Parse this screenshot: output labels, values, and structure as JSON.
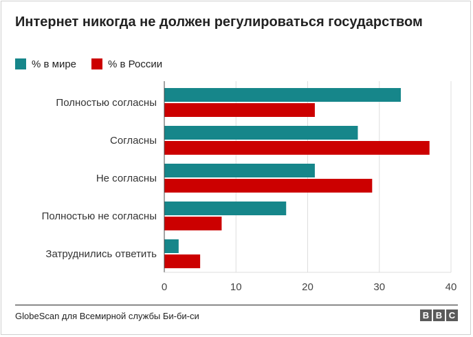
{
  "title": "Интернет никогда не должен регулироваться государством",
  "source": "GlobeScan для Всемирной службы Би-би-си",
  "logo": [
    "B",
    "B",
    "C"
  ],
  "colors": {
    "world": "#16868a",
    "russia": "#cc0000",
    "grid": "#dddddd",
    "axis": "#444444"
  },
  "chart_data": {
    "type": "bar",
    "orientation": "horizontal",
    "categories": [
      "Полностью согласны",
      "Согласны",
      "Не согласны",
      "Полностью не согласны",
      "Затруднились ответить"
    ],
    "series": [
      {
        "name": "% в мире",
        "values": [
          33,
          27,
          21,
          17,
          2
        ]
      },
      {
        "name": "% в России",
        "values": [
          21,
          37,
          29,
          8,
          5
        ]
      }
    ],
    "xlim": [
      0,
      40
    ],
    "xticks": [
      0,
      10,
      20,
      30,
      40
    ],
    "grid": true,
    "legend": "top-left"
  }
}
